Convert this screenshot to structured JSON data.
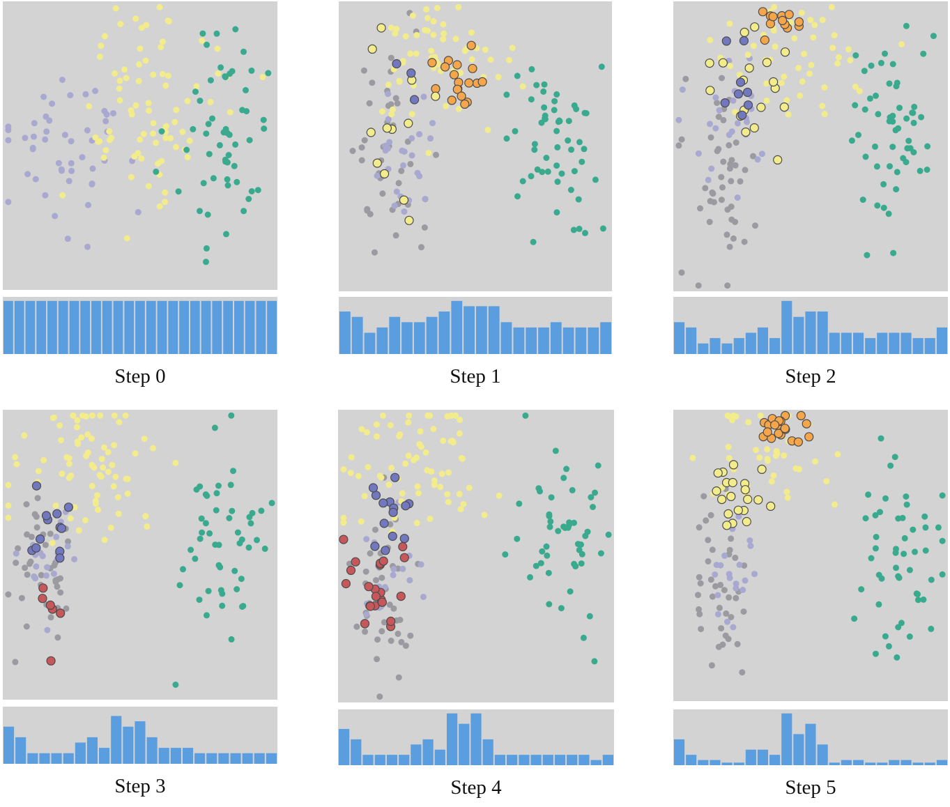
{
  "colors": {
    "background": "#d3d3d3",
    "hist_bar": "#5b9ee0",
    "purple": "#a8a8d0",
    "yellow": "#f2ec8c",
    "teal": "#3aaa8e",
    "orange": "#f5a54a",
    "red": "#c7575a",
    "blue_circle": "#7278c0",
    "grey": "#9a9aa0",
    "ring": "#4b4b4b"
  },
  "chart_data": [
    {
      "type": "scatter",
      "title": "Step 0",
      "histogram": {
        "type": "bar",
        "values": [
          10,
          10,
          10,
          10,
          10,
          10,
          10,
          10,
          10,
          10,
          10,
          10,
          10,
          10,
          10,
          10,
          10,
          10,
          10,
          10,
          10,
          10,
          10,
          10,
          10
        ],
        "ylim": [
          0,
          10.5
        ]
      },
      "clusters": [
        {
          "color": "purple",
          "style": "dot",
          "count": 48,
          "cx": 0.22,
          "cy": 0.52,
          "sx": 0.12,
          "sy": 0.14,
          "seed": 11
        },
        {
          "color": "yellow",
          "style": "dot",
          "count": 80,
          "cx": 0.52,
          "cy": 0.35,
          "sx": 0.14,
          "sy": 0.18,
          "seed": 12
        },
        {
          "color": "teal",
          "style": "dot",
          "count": 55,
          "cx": 0.78,
          "cy": 0.48,
          "sx": 0.09,
          "sy": 0.18,
          "seed": 13
        }
      ]
    },
    {
      "type": "scatter",
      "title": "Step 1",
      "histogram": {
        "type": "bar",
        "values": [
          8,
          7,
          4,
          5,
          7,
          6,
          6,
          7,
          8,
          10,
          9,
          9,
          9,
          6,
          5,
          5,
          5,
          6,
          5,
          5,
          5,
          6
        ],
        "ylim": [
          0,
          10.5
        ]
      },
      "clusters": [
        {
          "color": "grey",
          "style": "dot",
          "count": 42,
          "cx": 0.18,
          "cy": 0.52,
          "sx": 0.07,
          "sy": 0.17,
          "seed": 21
        },
        {
          "color": "purple",
          "style": "dot",
          "count": 25,
          "cx": 0.22,
          "cy": 0.5,
          "sx": 0.06,
          "sy": 0.1,
          "seed": 22
        },
        {
          "color": "yellow",
          "style": "dot",
          "count": 60,
          "cx": 0.4,
          "cy": 0.22,
          "sx": 0.14,
          "sy": 0.12,
          "seed": 23
        },
        {
          "color": "orange",
          "style": "ring",
          "count": 18,
          "cx": 0.45,
          "cy": 0.28,
          "sx": 0.06,
          "sy": 0.06,
          "seed": 24
        },
        {
          "color": "yellow",
          "style": "ring",
          "count": 12,
          "cx": 0.22,
          "cy": 0.4,
          "sx": 0.07,
          "sy": 0.15,
          "seed": 25
        },
        {
          "color": "blue_circle",
          "style": "ring",
          "count": 3,
          "cx": 0.26,
          "cy": 0.3,
          "sx": 0.03,
          "sy": 0.04,
          "seed": 26
        },
        {
          "color": "teal",
          "style": "dot",
          "count": 55,
          "cx": 0.78,
          "cy": 0.52,
          "sx": 0.08,
          "sy": 0.18,
          "seed": 27
        }
      ]
    },
    {
      "type": "scatter",
      "title": "Step 2",
      "histogram": {
        "type": "bar",
        "values": [
          6,
          5,
          2,
          3,
          2,
          3,
          4,
          5,
          3,
          10,
          7,
          8,
          8,
          4,
          4,
          4,
          3,
          4,
          4,
          4,
          3,
          3,
          5
        ],
        "ylim": [
          0,
          10.5
        ]
      },
      "clusters": [
        {
          "color": "grey",
          "style": "dot",
          "count": 45,
          "cx": 0.18,
          "cy": 0.58,
          "sx": 0.07,
          "sy": 0.18,
          "seed": 31
        },
        {
          "color": "purple",
          "style": "dot",
          "count": 25,
          "cx": 0.22,
          "cy": 0.45,
          "sx": 0.07,
          "sy": 0.12,
          "seed": 32
        },
        {
          "color": "yellow",
          "style": "dot",
          "count": 50,
          "cx": 0.42,
          "cy": 0.18,
          "sx": 0.16,
          "sy": 0.12,
          "seed": 33
        },
        {
          "color": "orange",
          "style": "ring",
          "count": 12,
          "cx": 0.4,
          "cy": 0.06,
          "sx": 0.04,
          "sy": 0.03,
          "seed": 34
        },
        {
          "color": "yellow",
          "style": "ring",
          "count": 18,
          "cx": 0.28,
          "cy": 0.3,
          "sx": 0.08,
          "sy": 0.1,
          "seed": 35
        },
        {
          "color": "blue_circle",
          "style": "ring",
          "count": 8,
          "cx": 0.24,
          "cy": 0.32,
          "sx": 0.04,
          "sy": 0.08,
          "seed": 36
        },
        {
          "color": "teal",
          "style": "dot",
          "count": 55,
          "cx": 0.8,
          "cy": 0.45,
          "sx": 0.08,
          "sy": 0.17,
          "seed": 37
        }
      ]
    },
    {
      "type": "scatter",
      "title": "Step 3",
      "histogram": {
        "type": "bar",
        "values": [
          7,
          5,
          2,
          2,
          2,
          2,
          4,
          5,
          3,
          9,
          7,
          8,
          5,
          3,
          3,
          3,
          2,
          2,
          2,
          2,
          2,
          2,
          2
        ],
        "ylim": [
          0,
          10.5
        ]
      },
      "clusters": [
        {
          "color": "grey",
          "style": "dot",
          "count": 40,
          "cx": 0.15,
          "cy": 0.58,
          "sx": 0.06,
          "sy": 0.14,
          "seed": 41
        },
        {
          "color": "purple",
          "style": "dot",
          "count": 20,
          "cx": 0.17,
          "cy": 0.55,
          "sx": 0.05,
          "sy": 0.08,
          "seed": 42
        },
        {
          "color": "yellow",
          "style": "dot",
          "count": 75,
          "cx": 0.3,
          "cy": 0.18,
          "sx": 0.14,
          "sy": 0.12,
          "seed": 43
        },
        {
          "color": "blue_circle",
          "style": "ring",
          "count": 12,
          "cx": 0.18,
          "cy": 0.4,
          "sx": 0.05,
          "sy": 0.08,
          "seed": 44
        },
        {
          "color": "red",
          "style": "ring",
          "count": 6,
          "cx": 0.17,
          "cy": 0.78,
          "sx": 0.03,
          "sy": 0.12,
          "seed": 45
        },
        {
          "color": "teal",
          "style": "dot",
          "count": 50,
          "cx": 0.8,
          "cy": 0.45,
          "sx": 0.09,
          "sy": 0.17,
          "seed": 46
        }
      ]
    },
    {
      "type": "scatter",
      "title": "Step 4",
      "histogram": {
        "type": "bar",
        "values": [
          7,
          5,
          2,
          2,
          2,
          2,
          4,
          5,
          3,
          10,
          8,
          10,
          5,
          2,
          2,
          2,
          2,
          2,
          2,
          2,
          2,
          1,
          2
        ],
        "ylim": [
          0,
          10.5
        ]
      },
      "clusters": [
        {
          "color": "grey",
          "style": "dot",
          "count": 40,
          "cx": 0.16,
          "cy": 0.6,
          "sx": 0.06,
          "sy": 0.16,
          "seed": 51
        },
        {
          "color": "purple",
          "style": "dot",
          "count": 18,
          "cx": 0.18,
          "cy": 0.55,
          "sx": 0.05,
          "sy": 0.08,
          "seed": 52
        },
        {
          "color": "yellow",
          "style": "dot",
          "count": 70,
          "cx": 0.3,
          "cy": 0.18,
          "sx": 0.14,
          "sy": 0.12,
          "seed": 53
        },
        {
          "color": "blue_circle",
          "style": "ring",
          "count": 14,
          "cx": 0.2,
          "cy": 0.38,
          "sx": 0.05,
          "sy": 0.08,
          "seed": 54
        },
        {
          "color": "red",
          "style": "ring",
          "count": 22,
          "cx": 0.17,
          "cy": 0.6,
          "sx": 0.05,
          "sy": 0.07,
          "seed": 55
        },
        {
          "color": "teal",
          "style": "dot",
          "count": 50,
          "cx": 0.8,
          "cy": 0.45,
          "sx": 0.09,
          "sy": 0.17,
          "seed": 56
        }
      ]
    },
    {
      "type": "scatter",
      "title": "Step 5",
      "histogram": {
        "type": "bar",
        "values": [
          5,
          2,
          1,
          1,
          0.5,
          0.5,
          3,
          3,
          2,
          10,
          6,
          8,
          4,
          0.5,
          1,
          1,
          0.5,
          0.5,
          1,
          1,
          0.5,
          0.5,
          1
        ],
        "ylim": [
          0,
          10.5
        ]
      },
      "clusters": [
        {
          "color": "grey",
          "style": "dot",
          "count": 40,
          "cx": 0.18,
          "cy": 0.6,
          "sx": 0.06,
          "sy": 0.17,
          "seed": 61
        },
        {
          "color": "purple",
          "style": "dot",
          "count": 20,
          "cx": 0.2,
          "cy": 0.55,
          "sx": 0.05,
          "sy": 0.08,
          "seed": 62
        },
        {
          "color": "yellow",
          "style": "dot",
          "count": 40,
          "cx": 0.3,
          "cy": 0.18,
          "sx": 0.12,
          "sy": 0.1,
          "seed": 63
        },
        {
          "color": "orange",
          "style": "ring",
          "count": 20,
          "cx": 0.4,
          "cy": 0.07,
          "sx": 0.04,
          "sy": 0.03,
          "seed": 64
        },
        {
          "color": "yellow",
          "style": "ring",
          "count": 20,
          "cx": 0.2,
          "cy": 0.28,
          "sx": 0.06,
          "sy": 0.08,
          "seed": 65
        },
        {
          "color": "teal",
          "style": "dot",
          "count": 50,
          "cx": 0.8,
          "cy": 0.45,
          "sx": 0.09,
          "sy": 0.17,
          "seed": 66
        }
      ]
    }
  ]
}
